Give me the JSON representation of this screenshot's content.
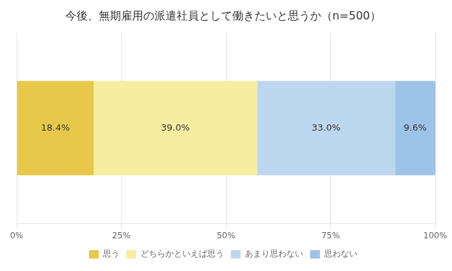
{
  "chart_data": {
    "type": "bar",
    "orientation": "horizontal",
    "stacked": true,
    "title": "今後、無期雇用の派遣社員として働きたいと思うか（n=500）",
    "categories": [
      null
    ],
    "series": [
      {
        "name": "思う",
        "color": "#E8C84A",
        "values": [
          18.4
        ],
        "value_labels": [
          "18.4%"
        ]
      },
      {
        "name": "どちらかといえば思う",
        "color": "#F5EDA0",
        "values": [
          39.0
        ],
        "value_labels": [
          "39.0%"
        ]
      },
      {
        "name": "あまり思わない",
        "color": "#BDD7EE",
        "values": [
          33.0
        ],
        "value_labels": [
          "33.0%"
        ]
      },
      {
        "name": "思わない",
        "color": "#9DC3E6",
        "values": [
          9.6
        ],
        "value_labels": [
          "9.6%"
        ]
      }
    ],
    "xlim": [
      0,
      100
    ],
    "xticks": [
      {
        "value": 0,
        "label": "0%"
      },
      {
        "value": 25,
        "label": "25%"
      },
      {
        "value": 50,
        "label": "50%"
      },
      {
        "value": 75,
        "label": "75%"
      },
      {
        "value": 100,
        "label": "100%"
      }
    ],
    "grid": true,
    "legend": "bottom",
    "data_labels": true,
    "tick_labels": "x"
  }
}
